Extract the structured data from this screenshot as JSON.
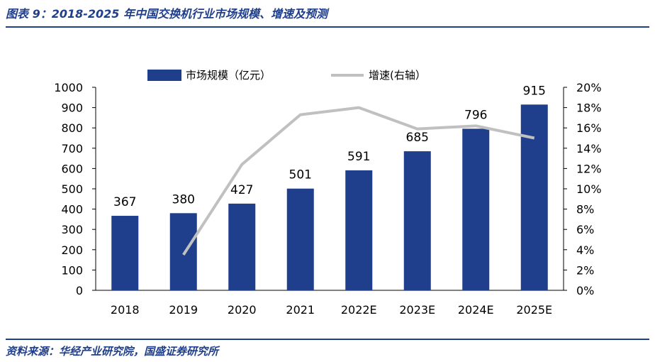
{
  "header": {
    "title": "图表 9：2018-2025 年中国交换机行业市场规模、增速及预测"
  },
  "footer": {
    "source": "资料来源：华经产业研究院，国盛证券研究所"
  },
  "colors": {
    "bar": "#1f3f8c",
    "line": "#c0c0c0",
    "rule": "#1f3f8c"
  },
  "chart_data": {
    "type": "bar",
    "categories": [
      "2018",
      "2019",
      "2020",
      "2021",
      "2022E",
      "2023E",
      "2024E",
      "2025E"
    ],
    "series": [
      {
        "name": "市场规模（亿元）",
        "type": "bar",
        "axis": "left",
        "values": [
          367,
          380,
          427,
          501,
          591,
          685,
          796,
          915
        ]
      },
      {
        "name": "增速(右轴）",
        "type": "line",
        "axis": "right",
        "values": [
          null,
          0.035,
          0.124,
          0.173,
          0.18,
          0.159,
          0.162,
          0.15
        ]
      }
    ],
    "y_left": {
      "lim": [
        0,
        1000
      ],
      "ticks": [
        "0",
        "100",
        "200",
        "300",
        "400",
        "500",
        "600",
        "700",
        "800",
        "900",
        "1000"
      ]
    },
    "y_right": {
      "lim": [
        0,
        0.2
      ],
      "ticks": [
        "0%",
        "2%",
        "4%",
        "6%",
        "8%",
        "10%",
        "12%",
        "14%",
        "16%",
        "18%",
        "20%"
      ]
    },
    "legend": "top",
    "grid": false
  }
}
